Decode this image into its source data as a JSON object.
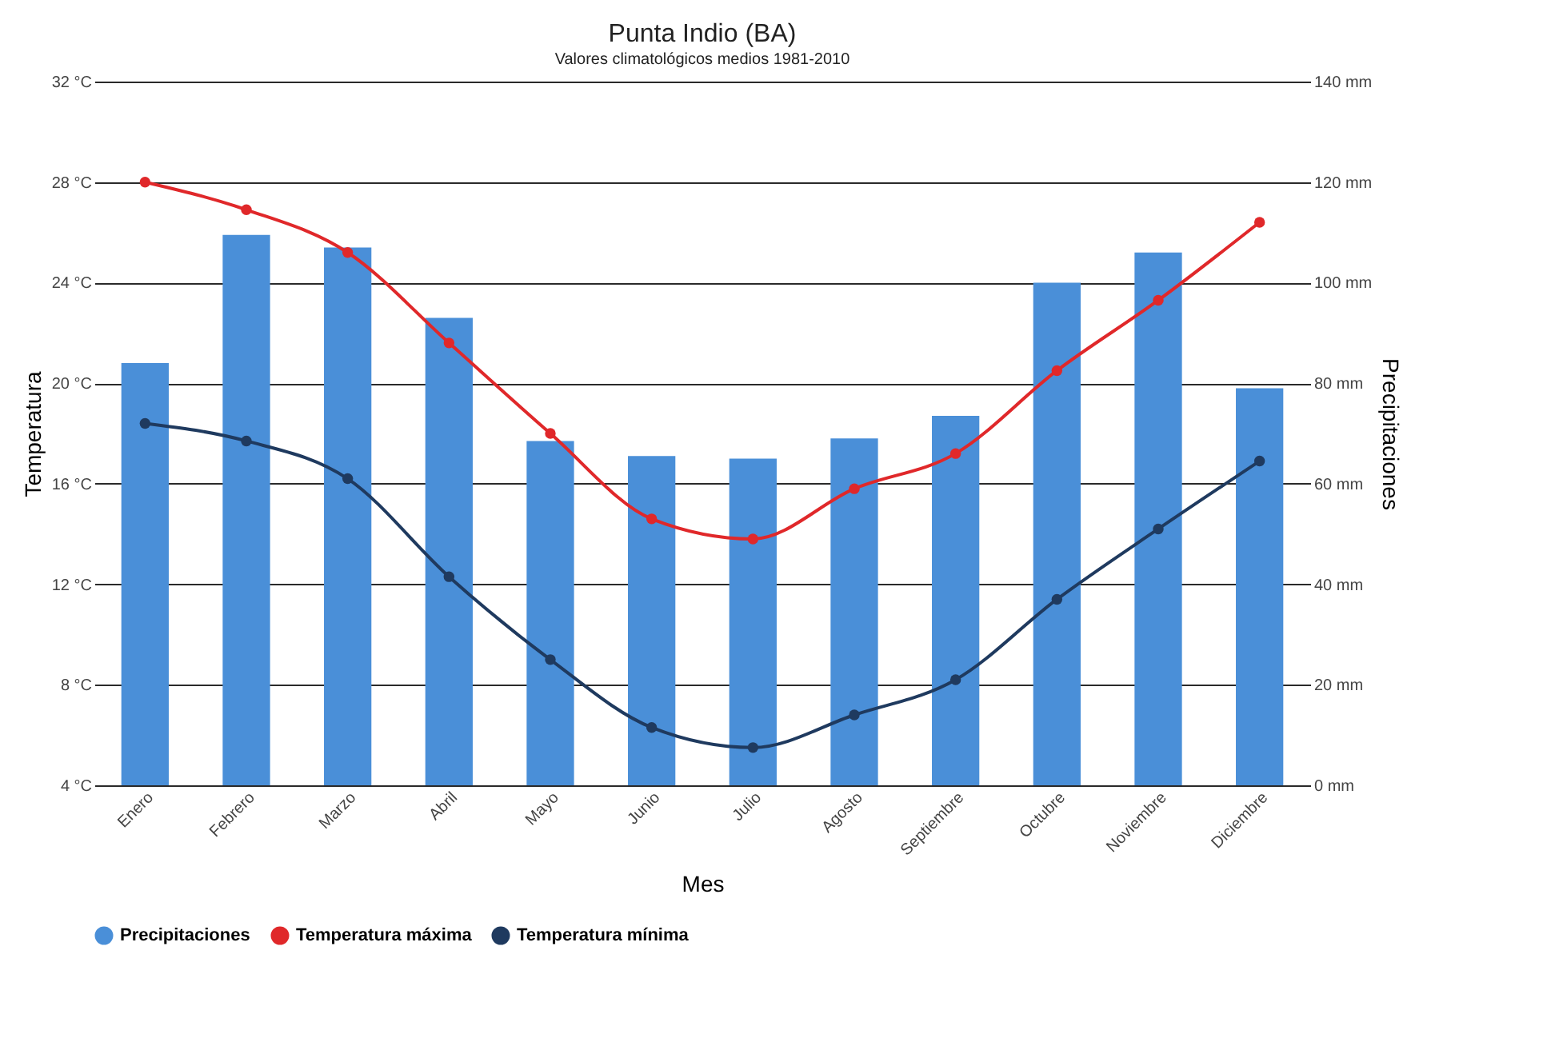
{
  "chart_data": {
    "type": "line",
    "title": "Punta Indio (BA)",
    "subtitle": "Valores climatológicos medios 1981-2010",
    "xlabel": "Mes",
    "ylabel": "Temperatura",
    "y2label": "Precipitaciones",
    "categories": [
      "Enero",
      "Febrero",
      "Marzo",
      "Abril",
      "Mayo",
      "Junio",
      "Julio",
      "Agosto",
      "Septiembre",
      "Octubre",
      "Noviembre",
      "Diciembre"
    ],
    "series": [
      {
        "name": "Precipitaciones",
        "type": "bar",
        "axis": "y2",
        "color": "#4a8fd8",
        "values": [
          84,
          109.5,
          107,
          93,
          68.5,
          65.5,
          65,
          69,
          73.5,
          100,
          106,
          79
        ]
      },
      {
        "name": "Temperatura máxima",
        "color": "#e0282a",
        "values": [
          28.0,
          26.9,
          25.2,
          21.6,
          18.0,
          14.6,
          13.8,
          15.8,
          17.2,
          20.5,
          23.3,
          26.4
        ]
      },
      {
        "name": "Temperatura mínima",
        "color": "#1f3a5f",
        "values": [
          18.4,
          17.7,
          16.2,
          12.3,
          9.0,
          6.3,
          5.5,
          6.8,
          8.2,
          11.4,
          14.2,
          16.9
        ]
      }
    ],
    "ylim": [
      4,
      32
    ],
    "yticks": [
      {
        "value": 4,
        "label": "4 °C"
      },
      {
        "value": 8,
        "label": "8 °C"
      },
      {
        "value": 12,
        "label": "12 °C"
      },
      {
        "value": 16,
        "label": "16 °C"
      },
      {
        "value": 20,
        "label": "20 °C"
      },
      {
        "value": 24,
        "label": "24 °C"
      },
      {
        "value": 28,
        "label": "28 °C"
      },
      {
        "value": 32,
        "label": "32 °C"
      }
    ],
    "y2lim": [
      0,
      140
    ],
    "y2ticks": [
      {
        "value": 0,
        "label": "0 mm"
      },
      {
        "value": 20,
        "label": "20 mm"
      },
      {
        "value": 40,
        "label": "40 mm"
      },
      {
        "value": 60,
        "label": "60 mm"
      },
      {
        "value": 80,
        "label": "80 mm"
      },
      {
        "value": 100,
        "label": "100 mm"
      },
      {
        "value": 120,
        "label": "120 mm"
      },
      {
        "value": 140,
        "label": "140 mm"
      }
    ],
    "grid": true,
    "legend": "bottom",
    "marker": "circle",
    "line_style": "solid"
  }
}
